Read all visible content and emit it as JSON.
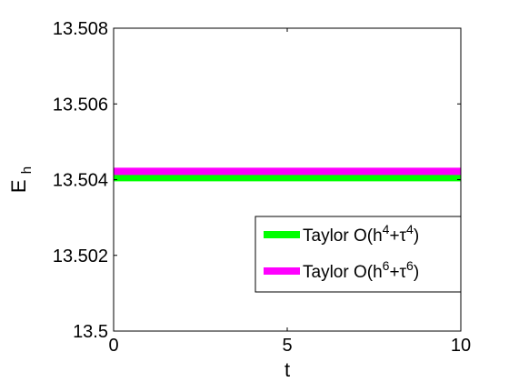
{
  "chart_data": {
    "type": "line",
    "title": "",
    "xlabel": "t",
    "ylabel_main": "E",
    "ylabel_sub": "h",
    "xlim": [
      0,
      10
    ],
    "ylim": [
      13.5,
      13.508
    ],
    "xticks": [
      {
        "value": 0,
        "label": "0"
      },
      {
        "value": 5,
        "label": "5"
      },
      {
        "value": 10,
        "label": "10"
      }
    ],
    "yticks": [
      {
        "value": 13.5,
        "label": "13.5"
      },
      {
        "value": 13.502,
        "label": "13.502"
      },
      {
        "value": 13.504,
        "label": "13.504"
      },
      {
        "value": 13.506,
        "label": "13.506"
      },
      {
        "value": 13.508,
        "label": "13.508"
      }
    ],
    "grid": false,
    "legend_position": "lower-right",
    "series": [
      {
        "name_base": "Taylor O(h",
        "name_exp1": "4",
        "name_mid": "+τ",
        "name_exp2": "4",
        "name_end": ")",
        "color": "#00ff00",
        "x": [
          0,
          10
        ],
        "y": [
          13.50405,
          13.50405
        ]
      },
      {
        "name_base": "Taylor O(h",
        "name_exp1": "6",
        "name_mid": "+τ",
        "name_exp2": "6",
        "name_end": ")",
        "color": "#ff00ff",
        "x": [
          0,
          10
        ],
        "y": [
          13.50422,
          13.50422
        ]
      }
    ]
  }
}
